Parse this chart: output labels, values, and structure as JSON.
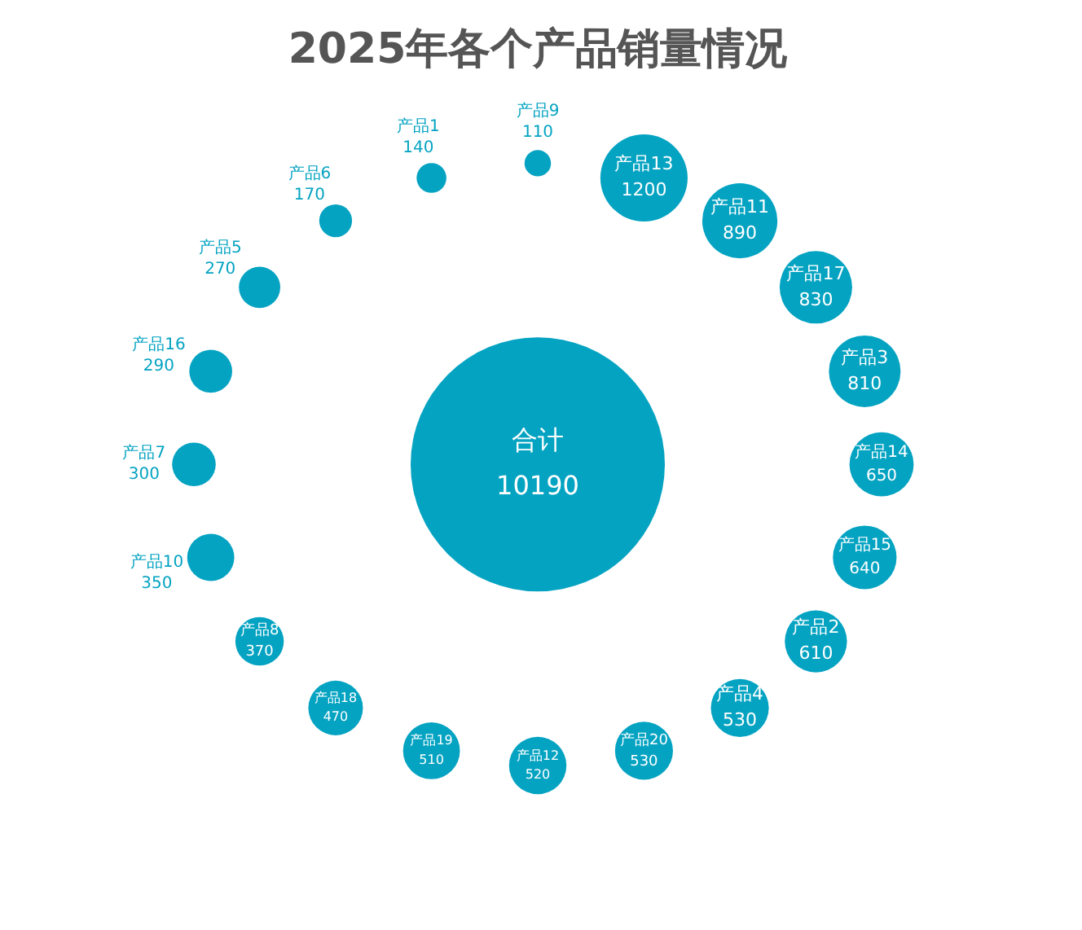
{
  "chart_data": {
    "type": "other",
    "title": "2025年各个产品销量情况",
    "categories": [
      "合计",
      "产品13",
      "产品11",
      "产品17",
      "产品3",
      "产品14",
      "产品15",
      "产品2",
      "产品4",
      "产品20",
      "产品12",
      "产品19",
      "产品18",
      "产品8",
      "产品10",
      "产品7",
      "产品16",
      "产品5",
      "产品6",
      "产品1",
      "产品9"
    ],
    "values": [
      10190,
      1200,
      890,
      830,
      810,
      650,
      640,
      610,
      530,
      530,
      520,
      510,
      470,
      370,
      350,
      300,
      290,
      270,
      170,
      140,
      110
    ],
    "color": "#04a3c2",
    "data_labels": true
  }
}
